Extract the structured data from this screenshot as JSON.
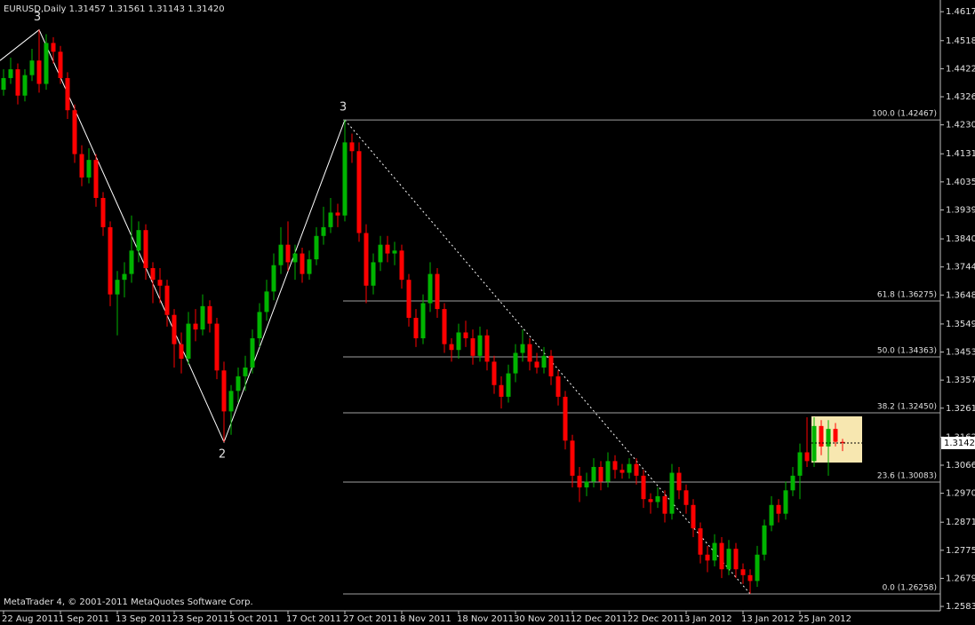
{
  "chart_data": {
    "type": "candlestick",
    "header": "EURUSD,Daily  1.31457 1.31561 1.31143 1.31420",
    "footer": "MetaTrader 4, © 2001-2011 MetaQuotes Software Corp.",
    "up_color": "#00b400",
    "down_color": "#ff0000",
    "categories": [
      "22 Aug 2011",
      null,
      null,
      null,
      null,
      null,
      null,
      null,
      "1 Sep 2011",
      null,
      null,
      null,
      null,
      null,
      null,
      null,
      "13 Sep 2011",
      null,
      null,
      null,
      null,
      null,
      null,
      null,
      "23 Sep 2011",
      null,
      null,
      null,
      null,
      null,
      null,
      null,
      "5 Oct 2011",
      null,
      null,
      null,
      null,
      null,
      null,
      null,
      "17 Oct 2011",
      null,
      null,
      null,
      null,
      null,
      null,
      null,
      "27 Oct 2011",
      null,
      null,
      null,
      null,
      null,
      null,
      null,
      "8 Nov 2011",
      null,
      null,
      null,
      null,
      null,
      null,
      null,
      "18 Nov 2011",
      null,
      null,
      null,
      null,
      null,
      null,
      null,
      "30 Nov 2011",
      null,
      null,
      null,
      null,
      null,
      null,
      null,
      "12 Dec 2011",
      null,
      null,
      null,
      null,
      null,
      null,
      null,
      "22 Dec 2011",
      null,
      null,
      null,
      null,
      null,
      null,
      null,
      "3 Jan 2012",
      null,
      null,
      null,
      null,
      null,
      null,
      null,
      "13 Jan 2012",
      null,
      null,
      null,
      null,
      null,
      null,
      null,
      "25 Jan 2012",
      null,
      null,
      null,
      null,
      null,
      null
    ],
    "ohlc": [
      [
        1.435,
        1.442,
        1.433,
        1.439
      ],
      [
        1.439,
        1.446,
        1.437,
        1.442
      ],
      [
        1.442,
        1.444,
        1.43,
        1.433
      ],
      [
        1.433,
        1.442,
        1.431,
        1.44
      ],
      [
        1.44,
        1.449,
        1.438,
        1.445
      ],
      [
        1.445,
        1.4555,
        1.434,
        1.437
      ],
      [
        1.437,
        1.454,
        1.435,
        1.451
      ],
      [
        1.451,
        1.453,
        1.444,
        1.448
      ],
      [
        1.448,
        1.45,
        1.437,
        1.439
      ],
      [
        1.439,
        1.441,
        1.425,
        1.428
      ],
      [
        1.428,
        1.43,
        1.41,
        1.413
      ],
      [
        1.413,
        1.416,
        1.402,
        1.405
      ],
      [
        1.405,
        1.415,
        1.403,
        1.411
      ],
      [
        1.411,
        1.413,
        1.395,
        1.398
      ],
      [
        1.398,
        1.4,
        1.385,
        1.388
      ],
      [
        1.388,
        1.39,
        1.361,
        1.365
      ],
      [
        1.365,
        1.373,
        1.351,
        1.37
      ],
      [
        1.37,
        1.376,
        1.364,
        1.372
      ],
      [
        1.372,
        1.392,
        1.369,
        1.38
      ],
      [
        1.38,
        1.39,
        1.376,
        1.387
      ],
      [
        1.387,
        1.389,
        1.37,
        1.374
      ],
      [
        1.374,
        1.376,
        1.362,
        1.37
      ],
      [
        1.37,
        1.374,
        1.362,
        1.368
      ],
      [
        1.368,
        1.37,
        1.354,
        1.358
      ],
      [
        1.358,
        1.36,
        1.34,
        1.348
      ],
      [
        1.348,
        1.352,
        1.338,
        1.343
      ],
      [
        1.343,
        1.359,
        1.341,
        1.355
      ],
      [
        1.355,
        1.36,
        1.349,
        1.353
      ],
      [
        1.353,
        1.365,
        1.351,
        1.361
      ],
      [
        1.361,
        1.363,
        1.352,
        1.355
      ],
      [
        1.355,
        1.357,
        1.336,
        1.339
      ],
      [
        1.339,
        1.342,
        1.3145,
        1.325
      ],
      [
        1.325,
        1.334,
        1.317,
        1.332
      ],
      [
        1.332,
        1.34,
        1.328,
        1.337
      ],
      [
        1.337,
        1.344,
        1.332,
        1.34
      ],
      [
        1.34,
        1.353,
        1.338,
        1.35
      ],
      [
        1.35,
        1.362,
        1.347,
        1.359
      ],
      [
        1.359,
        1.37,
        1.356,
        1.366
      ],
      [
        1.366,
        1.379,
        1.363,
        1.375
      ],
      [
        1.375,
        1.388,
        1.372,
        1.382
      ],
      [
        1.382,
        1.39,
        1.373,
        1.376
      ],
      [
        1.376,
        1.382,
        1.37,
        1.379
      ],
      [
        1.379,
        1.381,
        1.369,
        1.372
      ],
      [
        1.372,
        1.38,
        1.37,
        1.377
      ],
      [
        1.377,
        1.388,
        1.375,
        1.385
      ],
      [
        1.385,
        1.395,
        1.382,
        1.388
      ],
      [
        1.388,
        1.398,
        1.386,
        1.393
      ],
      [
        1.393,
        1.396,
        1.388,
        1.392
      ],
      [
        1.392,
        1.4247,
        1.39,
        1.417
      ],
      [
        1.417,
        1.42,
        1.41,
        1.414
      ],
      [
        1.414,
        1.417,
        1.383,
        1.386
      ],
      [
        1.386,
        1.389,
        1.362,
        1.368
      ],
      [
        1.368,
        1.379,
        1.365,
        1.376
      ],
      [
        1.376,
        1.385,
        1.373,
        1.382
      ],
      [
        1.382,
        1.385,
        1.376,
        1.379
      ],
      [
        1.379,
        1.383,
        1.375,
        1.38
      ],
      [
        1.38,
        1.382,
        1.367,
        1.37
      ],
      [
        1.37,
        1.372,
        1.354,
        1.357
      ],
      [
        1.357,
        1.36,
        1.347,
        1.35
      ],
      [
        1.35,
        1.365,
        1.348,
        1.362
      ],
      [
        1.362,
        1.376,
        1.359,
        1.372
      ],
      [
        1.372,
        1.374,
        1.357,
        1.36
      ],
      [
        1.36,
        1.362,
        1.345,
        1.348
      ],
      [
        1.348,
        1.35,
        1.342,
        1.346
      ],
      [
        1.346,
        1.355,
        1.343,
        1.352
      ],
      [
        1.352,
        1.356,
        1.347,
        1.35
      ],
      [
        1.35,
        1.353,
        1.341,
        1.344
      ],
      [
        1.344,
        1.354,
        1.342,
        1.351
      ],
      [
        1.351,
        1.353,
        1.339,
        1.342
      ],
      [
        1.342,
        1.344,
        1.331,
        1.334
      ],
      [
        1.334,
        1.337,
        1.326,
        1.33
      ],
      [
        1.33,
        1.341,
        1.328,
        1.338
      ],
      [
        1.338,
        1.348,
        1.335,
        1.345
      ],
      [
        1.345,
        1.353,
        1.342,
        1.348
      ],
      [
        1.348,
        1.35,
        1.339,
        1.342
      ],
      [
        1.342,
        1.345,
        1.338,
        1.34
      ],
      [
        1.34,
        1.347,
        1.338,
        1.344
      ],
      [
        1.344,
        1.346,
        1.334,
        1.337
      ],
      [
        1.337,
        1.339,
        1.327,
        1.33
      ],
      [
        1.33,
        1.332,
        1.312,
        1.315
      ],
      [
        1.315,
        1.317,
        1.299,
        1.303
      ],
      [
        1.303,
        1.306,
        1.294,
        1.299
      ],
      [
        1.299,
        1.304,
        1.296,
        1.301
      ],
      [
        1.301,
        1.309,
        1.299,
        1.306
      ],
      [
        1.306,
        1.308,
        1.298,
        1.301
      ],
      [
        1.301,
        1.311,
        1.299,
        1.308
      ],
      [
        1.308,
        1.31,
        1.302,
        1.305
      ],
      [
        1.305,
        1.307,
        1.302,
        1.304
      ],
      [
        1.304,
        1.309,
        1.302,
        1.307
      ],
      [
        1.307,
        1.309,
        1.3,
        1.303
      ],
      [
        1.303,
        1.305,
        1.292,
        1.295
      ],
      [
        1.295,
        1.297,
        1.29,
        1.294
      ],
      [
        1.294,
        1.299,
        1.292,
        1.296
      ],
      [
        1.296,
        1.298,
        1.287,
        1.29
      ],
      [
        1.29,
        1.307,
        1.288,
        1.304
      ],
      [
        1.304,
        1.306,
        1.295,
        1.298
      ],
      [
        1.298,
        1.3,
        1.29,
        1.293
      ],
      [
        1.293,
        1.295,
        1.282,
        1.285
      ],
      [
        1.285,
        1.287,
        1.273,
        1.276
      ],
      [
        1.276,
        1.279,
        1.27,
        1.274
      ],
      [
        1.274,
        1.283,
        1.272,
        1.28
      ],
      [
        1.28,
        1.282,
        1.268,
        1.271
      ],
      [
        1.271,
        1.281,
        1.269,
        1.278
      ],
      [
        1.278,
        1.28,
        1.268,
        1.271
      ],
      [
        1.271,
        1.273,
        1.266,
        1.269
      ],
      [
        1.269,
        1.271,
        1.2626,
        1.267
      ],
      [
        1.267,
        1.279,
        1.265,
        1.276
      ],
      [
        1.276,
        1.288,
        1.274,
        1.286
      ],
      [
        1.286,
        1.296,
        1.284,
        1.293
      ],
      [
        1.293,
        1.295,
        1.287,
        1.29
      ],
      [
        1.29,
        1.301,
        1.288,
        1.298
      ],
      [
        1.298,
        1.306,
        1.296,
        1.303
      ],
      [
        1.303,
        1.314,
        1.295,
        1.311
      ],
      [
        1.311,
        1.323,
        1.306,
        1.308
      ],
      [
        1.308,
        1.323,
        1.306,
        1.32
      ],
      [
        1.32,
        1.322,
        1.31,
        1.313
      ],
      [
        1.313,
        1.322,
        1.303,
        1.319
      ],
      [
        1.319,
        1.321,
        1.313,
        1.3146
      ],
      [
        1.31457,
        1.31561,
        1.31143,
        1.3142
      ]
    ],
    "ylim": [
      1.2568,
      1.4657
    ],
    "yticks": [
      {
        "value": 1.4617,
        "label": "1.46170"
      },
      {
        "value": 1.4518,
        "label": "1.45180"
      },
      {
        "value": 1.4422,
        "label": "1.44220"
      },
      {
        "value": 1.4326,
        "label": "1.43260"
      },
      {
        "value": 1.423,
        "label": "1.42300"
      },
      {
        "value": 1.4131,
        "label": "1.41310"
      },
      {
        "value": 1.4035,
        "label": "1.40350"
      },
      {
        "value": 1.3939,
        "label": "1.39390"
      },
      {
        "value": 1.384,
        "label": "1.38400"
      },
      {
        "value": 1.3744,
        "label": "1.37440"
      },
      {
        "value": 1.3648,
        "label": "1.36480"
      },
      {
        "value": 1.3549,
        "label": "1.35490"
      },
      {
        "value": 1.3453,
        "label": "1.34530"
      },
      {
        "value": 1.3357,
        "label": "1.33570"
      },
      {
        "value": 1.3261,
        "label": "1.32610"
      },
      {
        "value": 1.3162,
        "label": "1.31620"
      },
      {
        "value": 1.3066,
        "label": "1.30660"
      },
      {
        "value": 1.297,
        "label": "1.29700"
      },
      {
        "value": 1.2871,
        "label": "1.28710"
      },
      {
        "value": 1.2775,
        "label": "1.27750"
      },
      {
        "value": 1.2679,
        "label": "1.26790"
      },
      {
        "value": 1.2583,
        "label": "1.25830"
      }
    ],
    "current_price": {
      "value": 1.3142,
      "label": "1.31420"
    },
    "fib_levels": [
      {
        "value": 1.42467,
        "label": "100.0 (1.42467)"
      },
      {
        "value": 1.36275,
        "label": "61.8 (1.36275)"
      },
      {
        "value": 1.34363,
        "label": "50.0 (1.34363)"
      },
      {
        "value": 1.3245,
        "label": "38.2 (1.32450)"
      },
      {
        "value": 1.30083,
        "label": "23.6 (1.30083)"
      },
      {
        "value": 1.26258,
        "label": "0.0 (1.26258)"
      }
    ],
    "zigzag": {
      "x": [
        -0.5,
        5,
        31,
        48
      ],
      "y": [
        1.445,
        1.4555,
        1.3145,
        1.4247
      ],
      "labels": [
        null,
        "3",
        "2",
        "3"
      ]
    },
    "trendline": {
      "x": [
        48,
        105
      ],
      "y": [
        1.42467,
        1.26258
      ]
    }
  }
}
